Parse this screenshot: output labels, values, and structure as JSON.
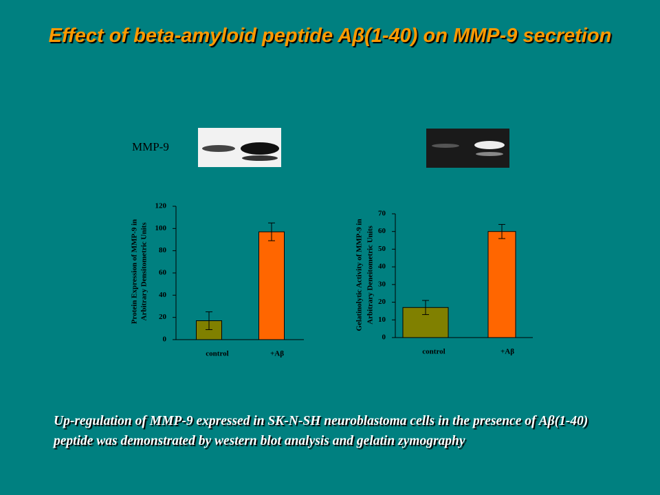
{
  "header": {
    "title": "Effect of beta-amyloid peptide Aβ(1-40) on MMP-9 secretion"
  },
  "blot": {
    "label": "MMP-9"
  },
  "chart_data": [
    {
      "type": "bar",
      "ylabel": [
        "Protein Expression of MMP-9 in",
        "Arbitrary Densitometric Units"
      ],
      "categories": [
        "control",
        "+Aβ"
      ],
      "values": [
        17,
        97
      ],
      "errors": [
        8,
        8
      ],
      "colors": [
        "#808000",
        "#ff6600"
      ],
      "ylim": [
        0,
        120
      ],
      "yticks": [
        0,
        20,
        40,
        60,
        80,
        100,
        120
      ]
    },
    {
      "type": "bar",
      "ylabel": [
        "Gelatinolytic Activity of MMP-9 in",
        "Arbitrary Deneitometric Units"
      ],
      "categories": [
        "control",
        "+Aβ"
      ],
      "values": [
        17,
        60
      ],
      "errors": [
        4,
        4
      ],
      "colors": [
        "#808000",
        "#ff6600"
      ],
      "ylim": [
        0,
        70
      ],
      "yticks": [
        0,
        10,
        20,
        30,
        40,
        50,
        60,
        70
      ]
    }
  ],
  "caption": {
    "text": "Up-regulation of MMP-9 expressed in SK-N-SH neuroblastoma cells in the presence of Aβ(1-40) peptide was demonstrated by western blot analysis and gelatin zymography"
  }
}
